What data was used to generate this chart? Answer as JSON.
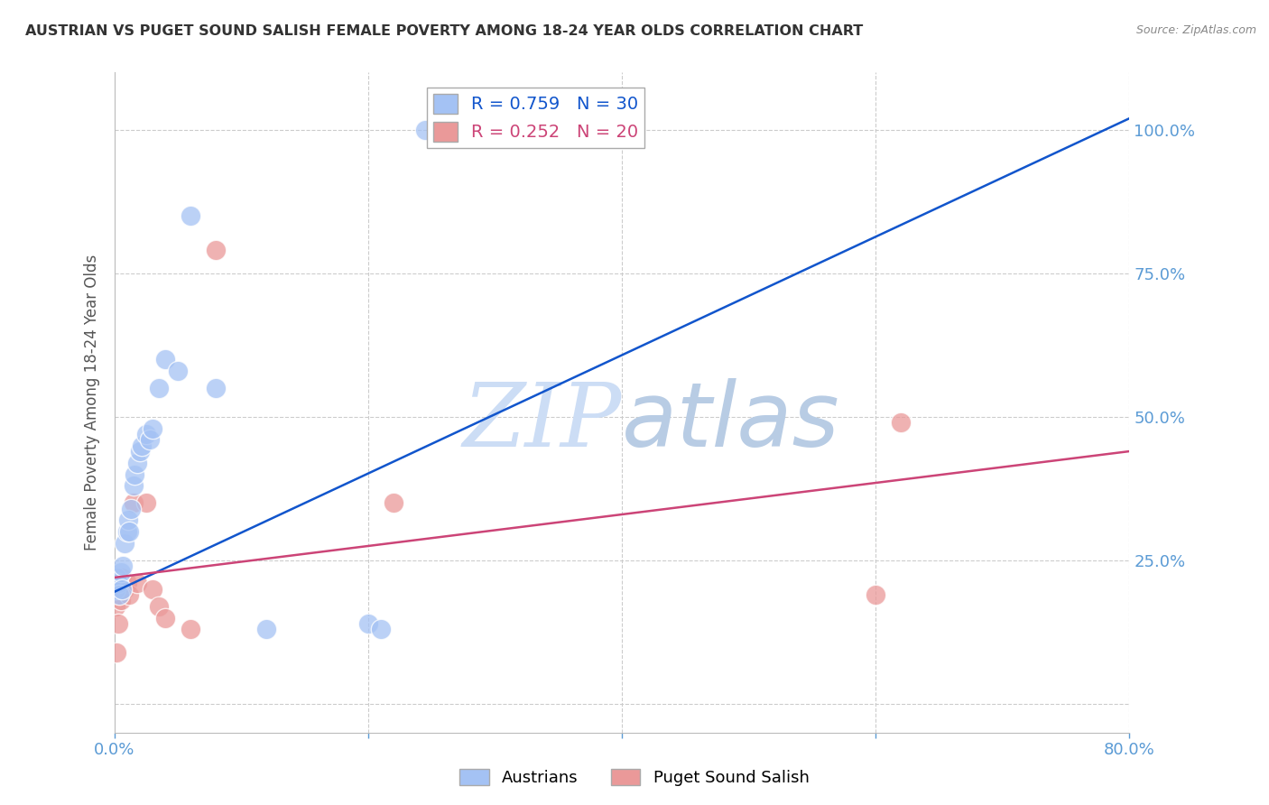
{
  "title": "AUSTRIAN VS PUGET SOUND SALISH FEMALE POVERTY AMONG 18-24 YEAR OLDS CORRELATION CHART",
  "source": "Source: ZipAtlas.com",
  "ylabel": "Female Poverty Among 18-24 Year Olds",
  "xlim": [
    0.0,
    0.8
  ],
  "ylim": [
    -0.05,
    1.1
  ],
  "blue_color": "#a4c2f4",
  "pink_color": "#ea9999",
  "blue_line_color": "#1155cc",
  "pink_line_color": "#cc4477",
  "watermark_color": "#dce8f8",
  "R_blue": 0.759,
  "N_blue": 30,
  "R_pink": 0.252,
  "N_pink": 20,
  "austrians_x": [
    0.001,
    0.002,
    0.003,
    0.004,
    0.005,
    0.006,
    0.007,
    0.008,
    0.01,
    0.011,
    0.012,
    0.013,
    0.015,
    0.016,
    0.018,
    0.02,
    0.022,
    0.025,
    0.028,
    0.03,
    0.035,
    0.04,
    0.05,
    0.06,
    0.08,
    0.12,
    0.2,
    0.21,
    0.245,
    0.26
  ],
  "austrians_y": [
    0.2,
    0.22,
    0.21,
    0.19,
    0.23,
    0.2,
    0.24,
    0.28,
    0.3,
    0.32,
    0.3,
    0.34,
    0.38,
    0.4,
    0.42,
    0.44,
    0.45,
    0.47,
    0.46,
    0.48,
    0.55,
    0.6,
    0.58,
    0.85,
    0.55,
    0.13,
    0.14,
    0.13,
    1.0,
    1.0
  ],
  "puget_x": [
    0.001,
    0.002,
    0.003,
    0.004,
    0.005,
    0.006,
    0.008,
    0.01,
    0.012,
    0.015,
    0.018,
    0.025,
    0.03,
    0.035,
    0.04,
    0.06,
    0.08,
    0.22,
    0.6,
    0.62
  ],
  "puget_y": [
    0.17,
    0.09,
    0.14,
    0.2,
    0.18,
    0.22,
    0.2,
    0.21,
    0.19,
    0.35,
    0.21,
    0.35,
    0.2,
    0.17,
    0.15,
    0.13,
    0.79,
    0.35,
    0.19,
    0.49
  ],
  "blue_line_x": [
    0.0,
    0.8
  ],
  "blue_line_y": [
    0.195,
    1.02
  ],
  "pink_line_x": [
    0.0,
    0.8
  ],
  "pink_line_y": [
    0.22,
    0.44
  ]
}
